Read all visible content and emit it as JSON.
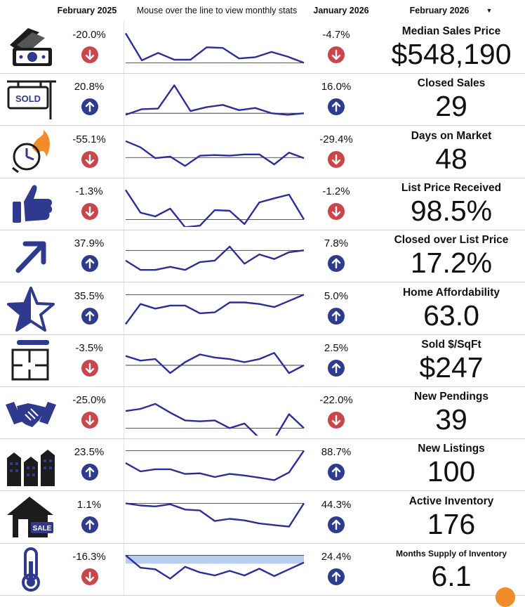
{
  "header": {
    "col_prior": "February 2025",
    "col_chart": "Mouse over the line to view monthly stats",
    "col_prev_month": "January 2026",
    "col_current": "February 2026",
    "dropdown_glyph": "▼"
  },
  "colors": {
    "line": "#2a2d9c",
    "up": "#2d3c8e",
    "down": "#c9464a",
    "icon": "#2f3a8f",
    "accent": "#f28c28",
    "band": "#b8cdf0"
  },
  "metrics": [
    {
      "name": "Median Sales Price",
      "value": "$548,190",
      "icon": "money-icon",
      "yoy": "-20.0%",
      "yoy_dir": "down",
      "mom": "-4.7%",
      "mom_dir": "down",
      "trend": [
        0.95,
        0.08,
        0.32,
        0.1,
        0.1,
        0.5,
        0.48,
        0.14,
        0.18,
        0.35,
        0.2,
        0.0
      ],
      "baseline": 0.0
    },
    {
      "name": "Closed Sales",
      "value": "29",
      "icon": "sold-sign-icon",
      "yoy": "20.8%",
      "yoy_dir": "up",
      "mom": "16.0%",
      "mom_dir": "up",
      "trend": [
        0.0,
        0.18,
        0.2,
        0.95,
        0.12,
        0.25,
        0.32,
        0.15,
        0.22,
        0.05,
        0.0,
        0.05
      ],
      "baseline": 0.05
    },
    {
      "name": "Days on Market",
      "value": "48",
      "icon": "clock-fire-icon",
      "yoy": "-55.1%",
      "yoy_dir": "down",
      "mom": "-29.4%",
      "mom_dir": "down",
      "trend": [
        0.85,
        0.65,
        0.3,
        0.35,
        0.05,
        0.38,
        0.4,
        0.38,
        0.42,
        0.42,
        0.1,
        0.48,
        0.3
      ],
      "baseline": 0.32
    },
    {
      "name": "List Price Received",
      "value": "98.5%",
      "icon": "thumbs-up-icon",
      "yoy": "-1.3%",
      "yoy_dir": "down",
      "mom": "-1.2%",
      "mom_dir": "down",
      "trend": [
        0.95,
        0.22,
        0.1,
        0.35,
        -0.25,
        -0.2,
        0.3,
        0.28,
        -0.15,
        0.55,
        0.68,
        0.8,
        0.0
      ],
      "baseline": 0.0
    },
    {
      "name": "Closed over List Price",
      "value": "17.2%",
      "icon": "arrow-up-right-icon",
      "yoy": "37.9%",
      "yoy_dir": "up",
      "mom": "7.8%",
      "mom_dir": "up",
      "trend": [
        0.35,
        0.05,
        0.05,
        0.15,
        0.05,
        0.3,
        0.35,
        0.8,
        0.25,
        0.55,
        0.4,
        0.62,
        0.68
      ],
      "baseline": 0.68
    },
    {
      "name": "Home Affordability",
      "value": "63.0",
      "icon": "star-icon",
      "yoy": "35.5%",
      "yoy_dir": "up",
      "mom": "5.0%",
      "mom_dir": "up",
      "trend": [
        0.0,
        0.65,
        0.5,
        0.6,
        0.6,
        0.35,
        0.38,
        0.7,
        0.7,
        0.65,
        0.55,
        0.75,
        0.95
      ],
      "baseline": 0.95
    },
    {
      "name": "Sold $/SqFt",
      "value": "$247",
      "icon": "floor-plan-icon",
      "yoy": "-3.5%",
      "yoy_dir": "down",
      "mom": "2.5%",
      "mom_dir": "up",
      "trend": [
        0.65,
        0.5,
        0.55,
        0.1,
        0.45,
        0.7,
        0.6,
        0.55,
        0.45,
        0.55,
        0.75,
        0.1,
        0.35
      ],
      "baseline": 0.35
    },
    {
      "name": "New Pendings",
      "value": "39",
      "icon": "handshake-icon",
      "yoy": "-25.0%",
      "yoy_dir": "down",
      "mom": "-22.0%",
      "mom_dir": "down",
      "trend": [
        0.55,
        0.62,
        0.78,
        0.5,
        0.25,
        0.22,
        0.25,
        0.0,
        0.15,
        -0.32,
        -0.35,
        0.45,
        0.0
      ],
      "baseline": 0.0
    },
    {
      "name": "New Listings",
      "value": "100",
      "icon": "buildings-icon",
      "yoy": "23.5%",
      "yoy_dir": "up",
      "mom": "88.7%",
      "mom_dir": "up",
      "trend": [
        0.55,
        0.28,
        0.35,
        0.35,
        0.2,
        0.22,
        0.1,
        0.2,
        0.15,
        0.08,
        0.0,
        0.25,
        0.95
      ],
      "baseline": 0.95
    },
    {
      "name": "Active Inventory",
      "value": "176",
      "icon": "house-for-sale-icon",
      "yoy": "1.1%",
      "yoy_dir": "up",
      "mom": "44.3%",
      "mom_dir": "up",
      "trend": [
        0.95,
        0.88,
        0.85,
        0.92,
        0.75,
        0.72,
        0.38,
        0.45,
        0.4,
        0.3,
        0.25,
        0.2,
        0.95
      ],
      "baseline": 0.95
    },
    {
      "name": "Months Supply of Inventory",
      "value": "6.1",
      "icon": "thermometer-icon",
      "yoy": "-16.3%",
      "yoy_dir": "down",
      "mom": "24.4%",
      "mom_dir": "up",
      "trend": [
        0.95,
        0.55,
        0.5,
        0.2,
        0.58,
        0.4,
        0.3,
        0.45,
        0.3,
        0.52,
        0.28,
        0.5,
        0.72
      ],
      "baseline": 0.95,
      "band": [
        0.68,
        0.95
      ]
    }
  ]
}
